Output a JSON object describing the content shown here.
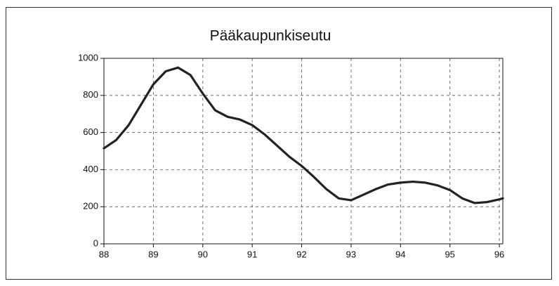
{
  "chart_data": {
    "type": "line",
    "title": "Pääkaupunkiseutu",
    "x": [
      88,
      88.25,
      88.5,
      88.75,
      89,
      89.25,
      89.5,
      89.75,
      90,
      90.25,
      90.5,
      90.75,
      91,
      91.25,
      91.5,
      91.75,
      92,
      92.25,
      92.5,
      92.75,
      93,
      93.25,
      93.5,
      93.75,
      94,
      94.25,
      94.5,
      94.75,
      95,
      95.25,
      95.5,
      95.75,
      96,
      96.07
    ],
    "series": [
      {
        "name": "Pääkaupunkiseutu",
        "color": "#222222",
        "values": [
          515,
          560,
          640,
          750,
          860,
          930,
          950,
          910,
          810,
          720,
          685,
          670,
          640,
          590,
          530,
          470,
          420,
          360,
          295,
          245,
          235,
          265,
          295,
          320,
          330,
          335,
          330,
          315,
          290,
          245,
          220,
          225,
          240,
          245
        ]
      }
    ],
    "xlim": [
      88,
      96.07
    ],
    "xticks": [
      88,
      89,
      90,
      91,
      92,
      93,
      94,
      95,
      96
    ],
    "ylim": [
      0,
      1000
    ],
    "yticks": [
      0,
      200,
      400,
      600,
      800,
      1000
    ],
    "grid": true
  }
}
